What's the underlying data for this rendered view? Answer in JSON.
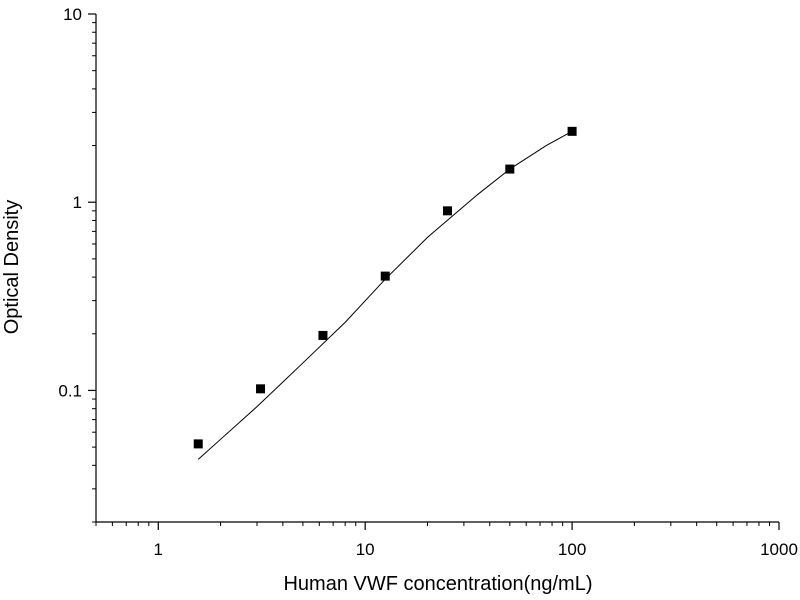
{
  "chart_data": {
    "type": "scatter",
    "xlabel": "Human VWF concentration(ng/mL)",
    "ylabel": "Optical Density",
    "x_scale": "log",
    "y_scale": "log",
    "xlim": [
      0.5,
      1000
    ],
    "ylim": [
      0.02,
      10
    ],
    "x_ticks": [
      {
        "value": 1,
        "label": "1"
      },
      {
        "value": 10,
        "label": "10"
      },
      {
        "value": 100,
        "label": "100"
      },
      {
        "value": 1000,
        "label": "1000"
      }
    ],
    "y_ticks": [
      {
        "value": 0.1,
        "label": "0.1"
      },
      {
        "value": 1,
        "label": "1"
      },
      {
        "value": 10,
        "label": "10"
      }
    ],
    "grid": false,
    "series": [
      {
        "marker": "square",
        "color": "#000000",
        "points": [
          {
            "x": 1.56,
            "y": 0.052
          },
          {
            "x": 3.12,
            "y": 0.102
          },
          {
            "x": 6.25,
            "y": 0.196
          },
          {
            "x": 12.5,
            "y": 0.405
          },
          {
            "x": 25,
            "y": 0.9
          },
          {
            "x": 50,
            "y": 1.5
          },
          {
            "x": 100,
            "y": 2.38
          }
        ]
      }
    ],
    "fit_curve": {
      "color": "#000000",
      "points": [
        {
          "x": 1.56,
          "y": 0.043
        },
        {
          "x": 2,
          "y": 0.055
        },
        {
          "x": 3,
          "y": 0.082
        },
        {
          "x": 5,
          "y": 0.14
        },
        {
          "x": 8,
          "y": 0.23
        },
        {
          "x": 12.5,
          "y": 0.39
        },
        {
          "x": 20,
          "y": 0.65
        },
        {
          "x": 35,
          "y": 1.1
        },
        {
          "x": 50,
          "y": 1.5
        },
        {
          "x": 75,
          "y": 2.0
        },
        {
          "x": 100,
          "y": 2.38
        }
      ]
    }
  }
}
